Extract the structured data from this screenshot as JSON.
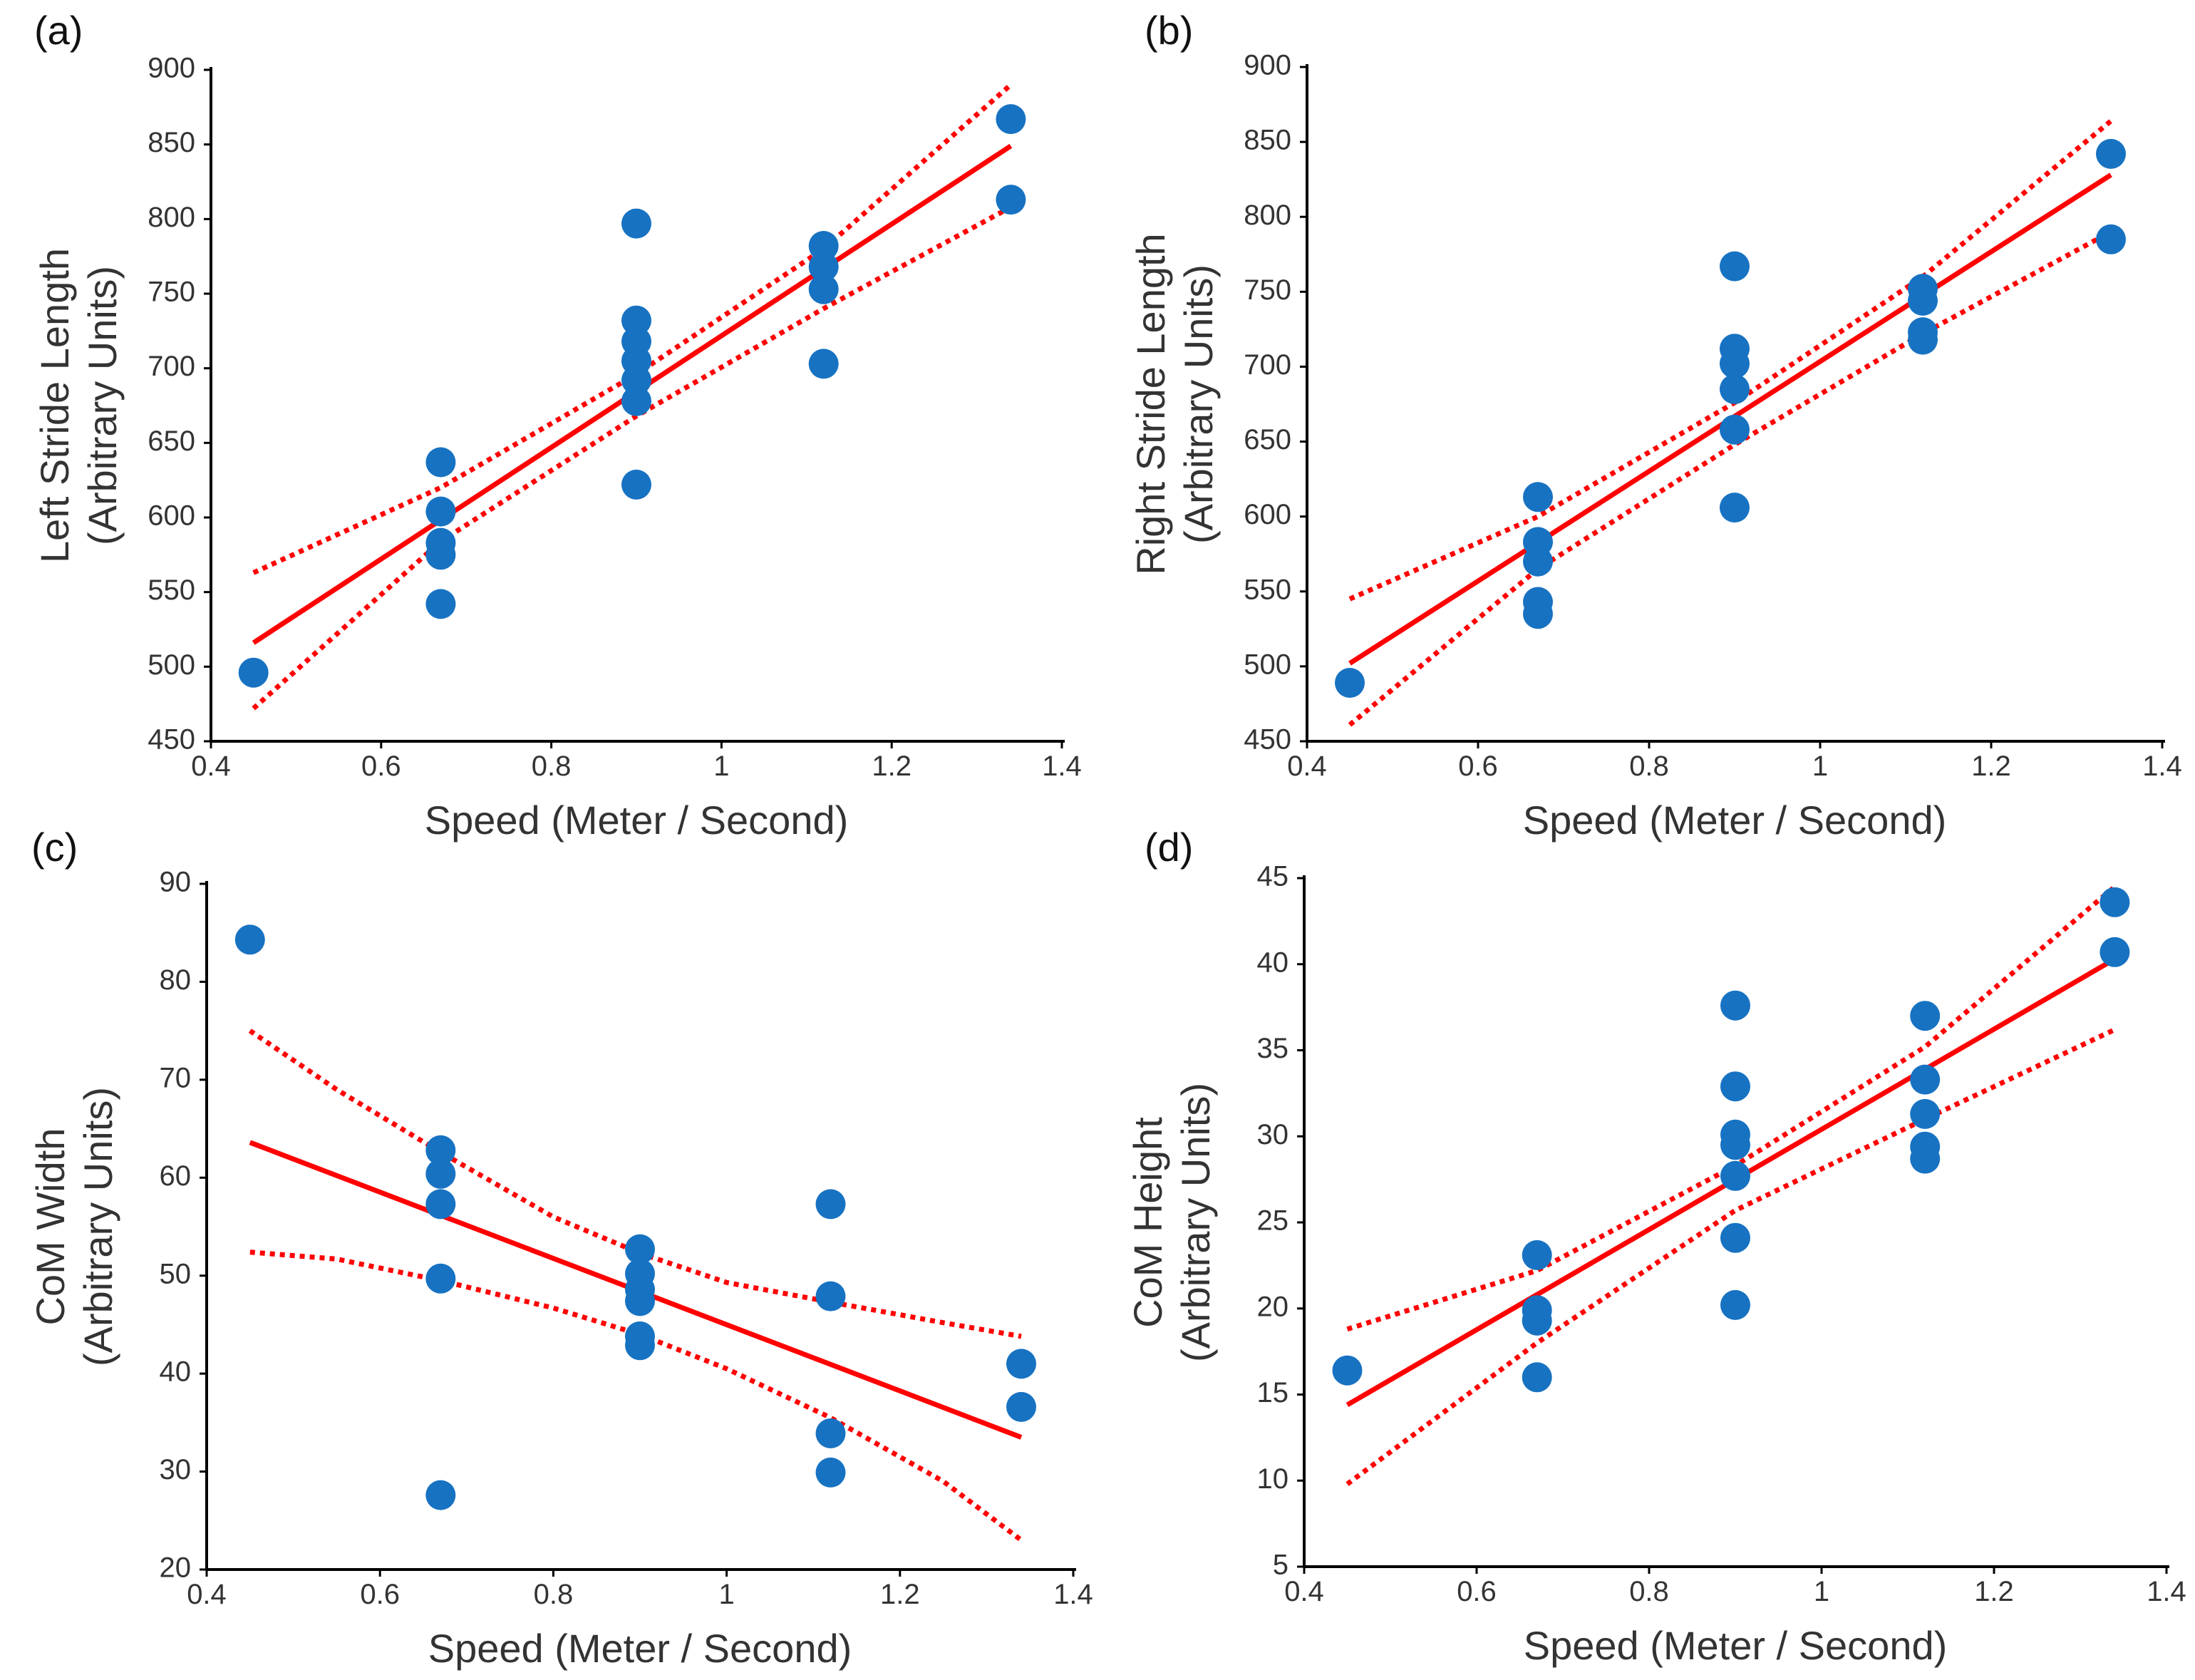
{
  "figure": {
    "colors": {
      "points": "#1772C2",
      "fit": "#FF0000",
      "axis": "#000000",
      "text": "#333333"
    }
  },
  "chart_data": [
    {
      "panel": "(a)",
      "type": "scatter",
      "xlabel": "Speed (Meter / Second)",
      "ylabel": [
        "Left Stride Length",
        "(Arbitrary Units)"
      ],
      "xlim": [
        0.4,
        1.4
      ],
      "ylim": [
        450,
        900
      ],
      "xticks": [
        0.4,
        0.6,
        0.8,
        1,
        1.2,
        1.4
      ],
      "yticks": [
        450,
        500,
        550,
        600,
        650,
        700,
        750,
        800,
        850,
        900
      ],
      "points": [
        [
          0.45,
          496
        ],
        [
          0.67,
          637
        ],
        [
          0.67,
          604
        ],
        [
          0.67,
          583
        ],
        [
          0.67,
          575
        ],
        [
          0.67,
          542
        ],
        [
          0.9,
          797
        ],
        [
          0.9,
          732
        ],
        [
          0.9,
          718
        ],
        [
          0.9,
          705
        ],
        [
          0.9,
          692
        ],
        [
          0.9,
          678
        ],
        [
          0.9,
          622
        ],
        [
          1.12,
          782
        ],
        [
          1.12,
          768
        ],
        [
          1.12,
          753
        ],
        [
          1.12,
          703
        ],
        [
          1.34,
          867
        ],
        [
          1.34,
          813
        ]
      ],
      "fit": [
        [
          0.45,
          516
        ],
        [
          1.34,
          849
        ]
      ],
      "ci_upper": [
        [
          0.45,
          563
        ],
        [
          0.67,
          620
        ],
        [
          0.9,
          696
        ],
        [
          1.12,
          780
        ],
        [
          1.34,
          890
        ]
      ],
      "ci_lower": [
        [
          0.45,
          472
        ],
        [
          0.67,
          584
        ],
        [
          0.9,
          668
        ],
        [
          1.12,
          740
        ],
        [
          1.34,
          808
        ]
      ]
    },
    {
      "panel": "(b)",
      "type": "scatter",
      "xlabel": "Speed (Meter / Second)",
      "ylabel": [
        "Right Stride Length",
        "(Arbitrary Units)"
      ],
      "xlim": [
        0.4,
        1.4
      ],
      "ylim": [
        450,
        900
      ],
      "xticks": [
        0.4,
        0.6,
        0.8,
        1,
        1.2,
        1.4
      ],
      "yticks": [
        450,
        500,
        550,
        600,
        650,
        700,
        750,
        800,
        850,
        900
      ],
      "points": [
        [
          0.45,
          489
        ],
        [
          0.67,
          613
        ],
        [
          0.67,
          583
        ],
        [
          0.67,
          570
        ],
        [
          0.67,
          543
        ],
        [
          0.67,
          535
        ],
        [
          0.9,
          767
        ],
        [
          0.9,
          712
        ],
        [
          0.9,
          702
        ],
        [
          0.9,
          685
        ],
        [
          0.9,
          658
        ],
        [
          0.9,
          606
        ],
        [
          1.12,
          752
        ],
        [
          1.12,
          744
        ],
        [
          1.12,
          723
        ],
        [
          1.12,
          718
        ],
        [
          1.34,
          842
        ],
        [
          1.34,
          785
        ]
      ],
      "fit": [
        [
          0.45,
          502
        ],
        [
          1.34,
          828
        ]
      ],
      "ci_upper": [
        [
          0.45,
          545
        ],
        [
          0.67,
          600
        ],
        [
          0.9,
          676
        ],
        [
          1.12,
          760
        ],
        [
          1.34,
          864
        ]
      ],
      "ci_lower": [
        [
          0.45,
          461
        ],
        [
          0.67,
          565
        ],
        [
          0.9,
          648
        ],
        [
          1.12,
          722
        ],
        [
          1.34,
          790
        ]
      ]
    },
    {
      "panel": "(c)",
      "type": "scatter",
      "xlabel": "Speed (Meter / Second)",
      "ylabel": [
        "CoM Width",
        "(Arbitrary Units)"
      ],
      "xlim": [
        0.4,
        1.4
      ],
      "ylim": [
        20,
        90
      ],
      "xticks": [
        0.4,
        0.6,
        0.8,
        1,
        1.2,
        1.4
      ],
      "yticks": [
        20,
        30,
        40,
        50,
        60,
        70,
        80,
        90
      ],
      "points": [
        [
          0.45,
          84.3
        ],
        [
          0.67,
          62.8
        ],
        [
          0.67,
          60.4
        ],
        [
          0.67,
          57.3
        ],
        [
          0.67,
          49.7
        ],
        [
          0.67,
          27.6
        ],
        [
          0.9,
          52.7
        ],
        [
          0.9,
          50.2
        ],
        [
          0.9,
          48.6
        ],
        [
          0.9,
          47.4
        ],
        [
          0.9,
          43.8
        ],
        [
          0.9,
          42.9
        ],
        [
          1.12,
          57.3
        ],
        [
          1.12,
          47.9
        ],
        [
          1.12,
          33.9
        ],
        [
          1.12,
          29.9
        ],
        [
          1.34,
          41.0
        ],
        [
          1.34,
          36.6
        ]
      ],
      "fit": [
        [
          0.45,
          63.6
        ],
        [
          1.34,
          33.5
        ]
      ],
      "ci_upper": [
        [
          0.45,
          75.0
        ],
        [
          0.55,
          69.0
        ],
        [
          0.67,
          62.6
        ],
        [
          0.8,
          56.0
        ],
        [
          0.9,
          52.3
        ],
        [
          1.0,
          49.3
        ],
        [
          1.12,
          47.3
        ],
        [
          1.25,
          45.2
        ],
        [
          1.34,
          43.8
        ]
      ],
      "ci_lower": [
        [
          0.45,
          52.4
        ],
        [
          0.55,
          51.7
        ],
        [
          0.67,
          49.5
        ],
        [
          0.8,
          46.7
        ],
        [
          0.9,
          44.0
        ],
        [
          1.0,
          40.5
        ],
        [
          1.12,
          35.5
        ],
        [
          1.25,
          29.0
        ],
        [
          1.34,
          23.0
        ]
      ]
    },
    {
      "panel": "(d)",
      "type": "scatter",
      "xlabel": "Speed (Meter / Second)",
      "ylabel": [
        "CoM Height",
        "(Arbitrary Units)"
      ],
      "xlim": [
        0.4,
        1.4
      ],
      "ylim": [
        5,
        45
      ],
      "xticks": [
        0.4,
        0.6,
        0.8,
        1,
        1.2,
        1.4
      ],
      "yticks": [
        5,
        10,
        15,
        20,
        25,
        30,
        35,
        40,
        45
      ],
      "points": [
        [
          0.45,
          16.4
        ],
        [
          0.67,
          23.1
        ],
        [
          0.67,
          19.9
        ],
        [
          0.67,
          19.3
        ],
        [
          0.67,
          16.0
        ],
        [
          0.9,
          37.6
        ],
        [
          0.9,
          32.9
        ],
        [
          0.9,
          30.1
        ],
        [
          0.9,
          29.5
        ],
        [
          0.9,
          27.7
        ],
        [
          0.9,
          24.1
        ],
        [
          0.9,
          20.2
        ],
        [
          1.12,
          37.0
        ],
        [
          1.12,
          33.3
        ],
        [
          1.12,
          31.3
        ],
        [
          1.12,
          29.4
        ],
        [
          1.12,
          28.7
        ],
        [
          1.34,
          43.6
        ],
        [
          1.34,
          40.7
        ]
      ],
      "fit": [
        [
          0.45,
          14.4
        ],
        [
          1.34,
          40.3
        ]
      ],
      "ci_upper": [
        [
          0.45,
          18.8
        ],
        [
          0.67,
          22.2
        ],
        [
          0.9,
          28.3
        ],
        [
          1.12,
          35.2
        ],
        [
          1.34,
          44.5
        ]
      ],
      "ci_lower": [
        [
          0.45,
          9.8
        ],
        [
          0.67,
          18.0
        ],
        [
          0.9,
          25.7
        ],
        [
          1.12,
          31.0
        ],
        [
          1.34,
          36.2
        ]
      ]
    }
  ]
}
